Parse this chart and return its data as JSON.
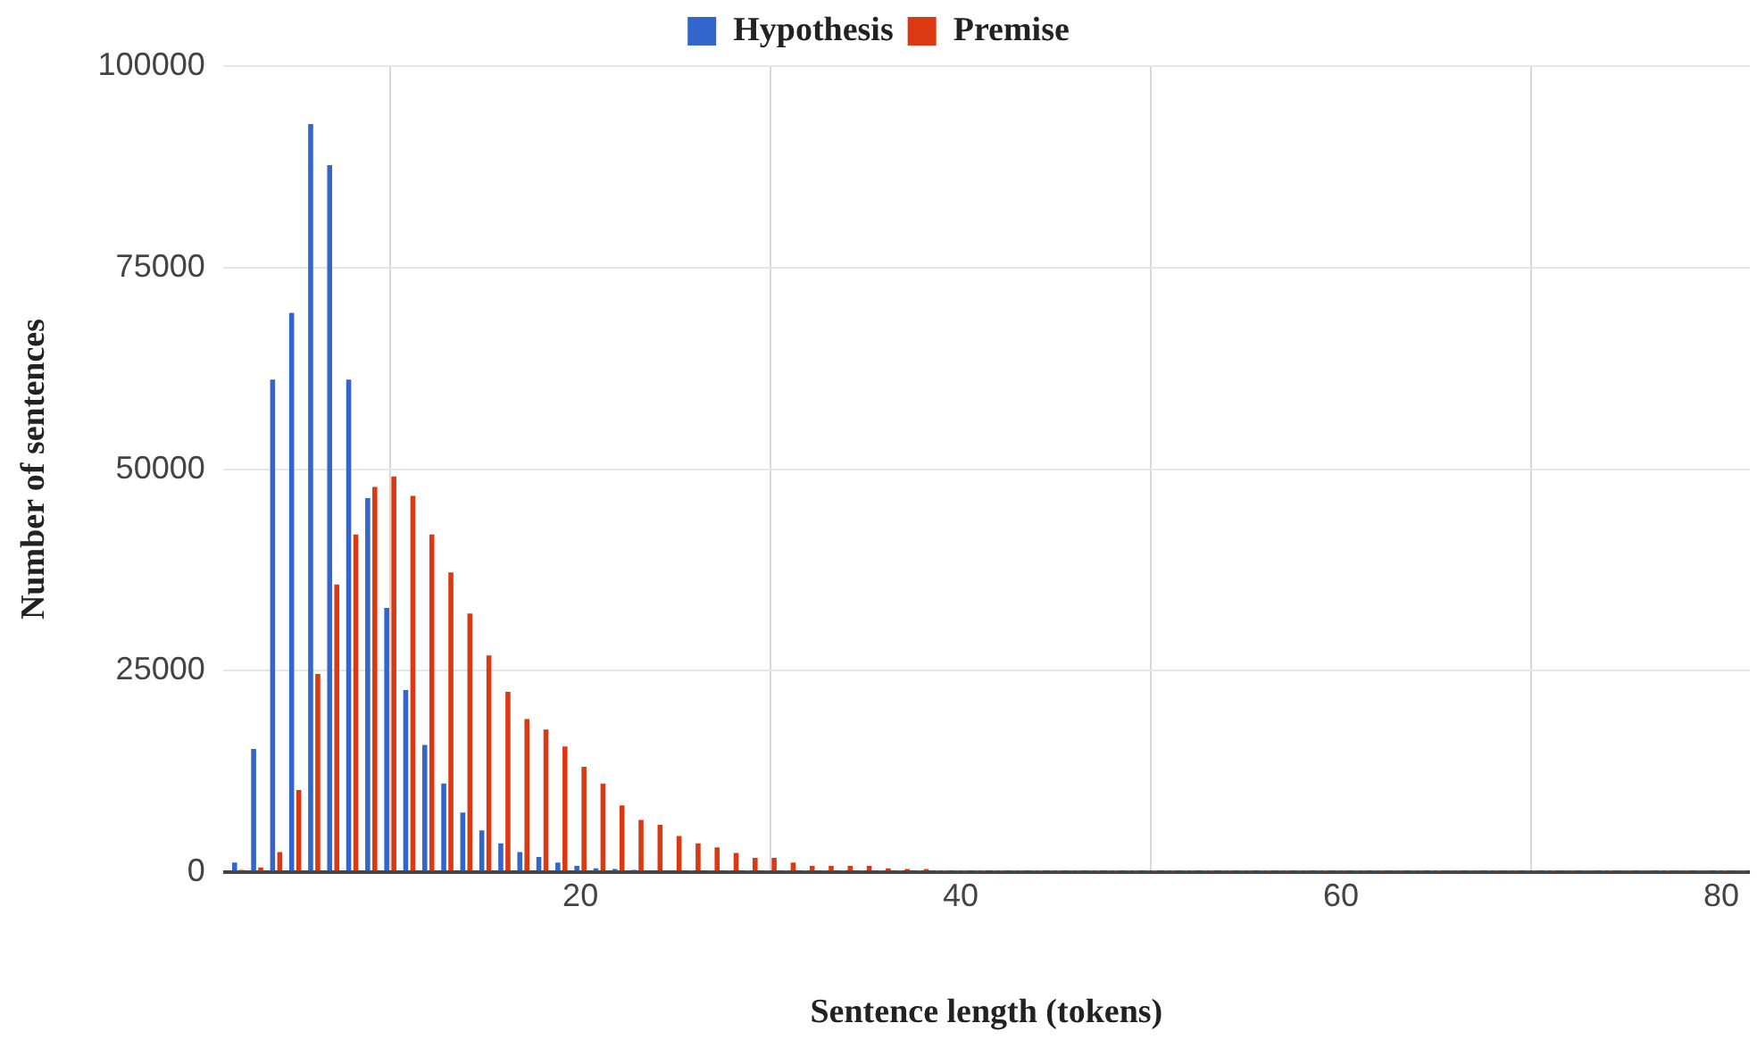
{
  "chart_data": {
    "type": "bar",
    "xlabel": "Sentence length (tokens)",
    "ylabel": "Number of sentences",
    "x": [
      2,
      3,
      4,
      5,
      6,
      7,
      8,
      9,
      10,
      11,
      12,
      13,
      14,
      15,
      16,
      17,
      18,
      19,
      20,
      21,
      22,
      23,
      24,
      25,
      26,
      27,
      28,
      29,
      30,
      31,
      32,
      33,
      34,
      35,
      36,
      37,
      38,
      39,
      40,
      41,
      42,
      43,
      44,
      45,
      46,
      47,
      48,
      49,
      50,
      51,
      52,
      53,
      54,
      55,
      56,
      57,
      58,
      59,
      60,
      61,
      62,
      63,
      64,
      65,
      66,
      67,
      68,
      69,
      70,
      71,
      72,
      73,
      74,
      75,
      76,
      77,
      78,
      79,
      80,
      81
    ],
    "series": [
      {
        "name": "Hypothesis",
        "color": "#3366cc",
        "values": [
          1200,
          15300,
          61100,
          69400,
          92800,
          87700,
          61100,
          46400,
          32800,
          22600,
          15800,
          11000,
          7400,
          5200,
          3600,
          2500,
          1900,
          1200,
          800,
          500,
          400,
          300,
          null,
          null,
          100,
          100,
          100,
          100,
          100,
          100,
          100,
          100,
          100,
          100,
          100,
          100,
          100,
          100,
          100,
          100,
          100,
          100,
          100,
          100,
          100,
          100,
          100,
          100,
          100,
          100,
          100,
          100,
          100,
          100,
          100,
          100,
          100,
          100,
          100,
          100,
          100,
          100,
          100,
          100,
          100,
          100,
          100,
          100,
          100,
          100,
          100,
          100,
          100,
          100,
          100,
          100,
          100,
          100,
          100,
          100
        ]
      },
      {
        "name": "Premise",
        "color": "#dc3912",
        "values": [
          300,
          600,
          2500,
          10200,
          24600,
          35700,
          41900,
          47800,
          49100,
          46700,
          41900,
          37200,
          32100,
          26900,
          22400,
          19000,
          17700,
          15600,
          13100,
          11000,
          8300,
          6500,
          5900,
          4500,
          3600,
          3100,
          2400,
          1800,
          1800,
          1200,
          800,
          800,
          800,
          800,
          500,
          400,
          400,
          100,
          100,
          100,
          100,
          100,
          100,
          100,
          100,
          100,
          100,
          100,
          100,
          100,
          100,
          100,
          100,
          100,
          100,
          100,
          100,
          100,
          100,
          100,
          100,
          100,
          100,
          100,
          100,
          100,
          100,
          100,
          100,
          100,
          100,
          100,
          100,
          100,
          100,
          100,
          100,
          100,
          100,
          100
        ]
      }
    ],
    "xlim": [
      1.2,
      81.5
    ],
    "xticks": [
      20,
      40,
      60,
      80
    ],
    "ylim": [
      0,
      100000
    ],
    "yticks": [
      0,
      25000,
      50000,
      75000,
      100000
    ],
    "grid": true,
    "legend": "top"
  }
}
